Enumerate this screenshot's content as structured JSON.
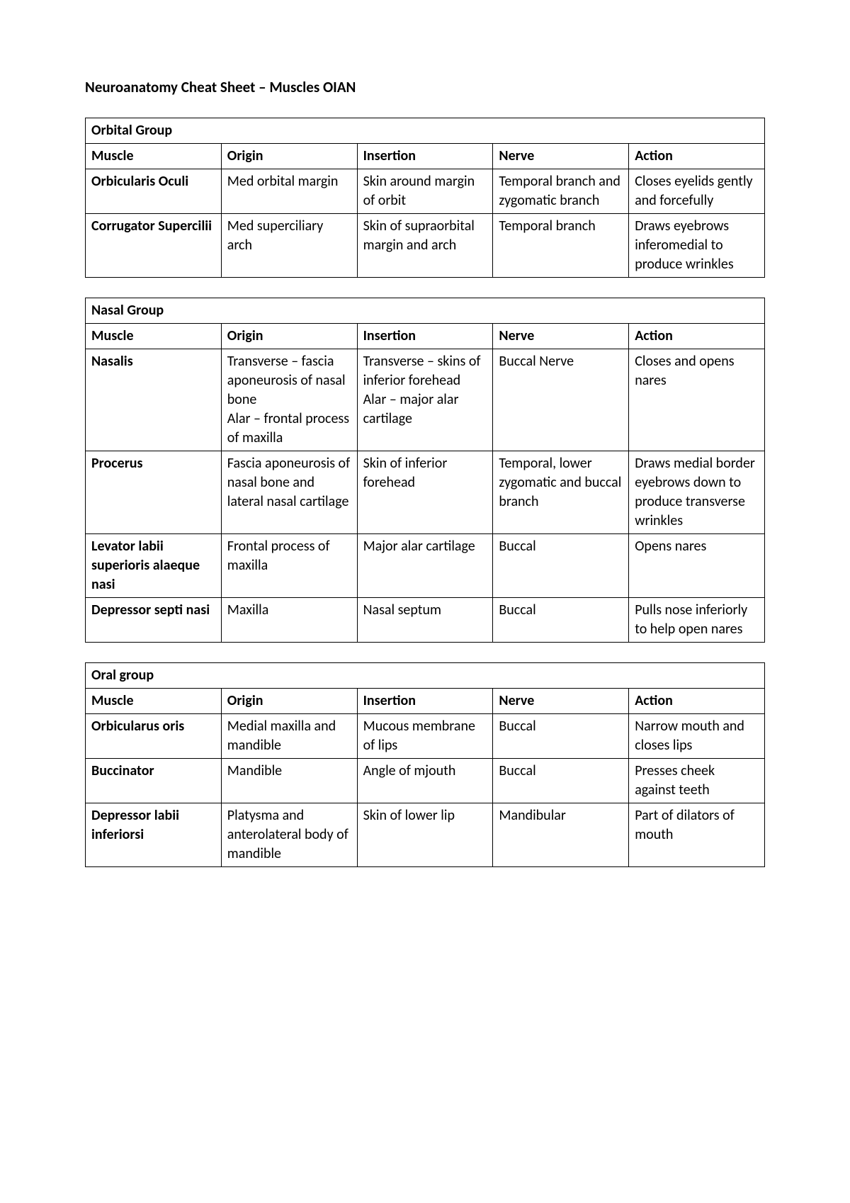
{
  "document": {
    "title": "Neuroanatomy Cheat Sheet – Muscles OIAN"
  },
  "columns": [
    "Muscle",
    "Origin",
    "Insertion",
    "Nerve",
    "Action"
  ],
  "tables": [
    {
      "group": "Orbital Group",
      "rows": [
        {
          "muscle": "Orbicularis Oculi",
          "origin": "Med orbital margin",
          "insertion": "Skin around margin of orbit",
          "nerve": "Temporal branch and zygomatic branch",
          "action": "Closes eyelids gently and forcefully"
        },
        {
          "muscle": "Corrugator Supercilii",
          "origin": "Med superciliary arch",
          "insertion": "Skin of supraorbital margin and arch",
          "nerve": "Temporal branch",
          "action": "Draws eyebrows inferomedial to produce wrinkles"
        }
      ]
    },
    {
      "group": "Nasal Group",
      "rows": [
        {
          "muscle": "Nasalis",
          "origin": "Transverse – fascia aponeurosis of nasal bone\nAlar – frontal process of maxilla",
          "insertion": "Transverse – skins of inferior forehead\nAlar – major alar cartilage",
          "nerve": "Buccal Nerve",
          "action": "Closes and opens nares"
        },
        {
          "muscle": "Procerus",
          "origin": "Fascia aponeurosis of nasal bone and lateral nasal cartilage",
          "insertion": "Skin of inferior forehead",
          "nerve": "Temporal, lower zygomatic and buccal branch",
          "action": "Draws medial border eyebrows down to produce transverse wrinkles"
        },
        {
          "muscle": "Levator labii superioris alaeque nasi",
          "origin": "Frontal process of maxilla",
          "insertion": "Major alar cartilage",
          "nerve": "Buccal",
          "action": "Opens nares"
        },
        {
          "muscle": "Depressor septi nasi",
          "origin": "Maxilla",
          "insertion": "Nasal septum",
          "nerve": "Buccal",
          "action": "Pulls nose inferiorly to help open nares"
        }
      ]
    },
    {
      "group": "Oral group",
      "rows": [
        {
          "muscle": "Orbicularus oris",
          "origin": "Medial maxilla and mandible",
          "insertion": "Mucous membrane of lips",
          "nerve": "Buccal",
          "action": "Narrow mouth and closes lips"
        },
        {
          "muscle": "Buccinator",
          "origin": "Mandible",
          "insertion": "Angle of mjouth",
          "nerve": "Buccal",
          "action": "Presses cheek against teeth"
        },
        {
          "muscle": "Depressor labii inferiorsi",
          "origin": "Platysma and anterolateral body of mandible",
          "insertion": "Skin of lower lip",
          "nerve": "Mandibular",
          "action": "Part of dilators of mouth"
        }
      ]
    }
  ]
}
